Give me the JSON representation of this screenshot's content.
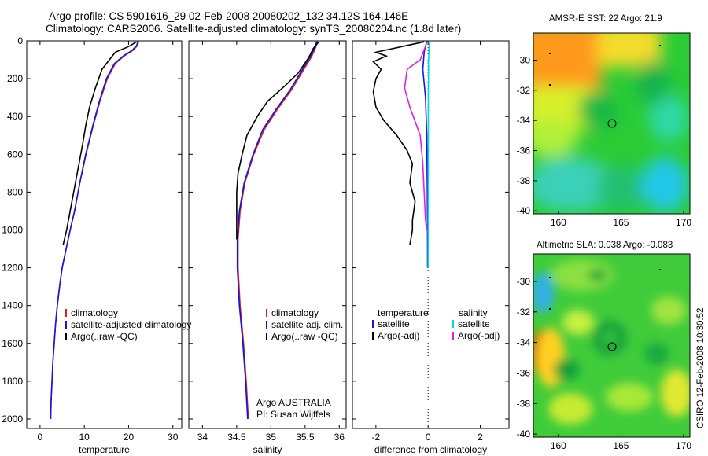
{
  "header": {
    "line1": "Argo profile: CS 5901616_29 02-Feb-2008 20080202_132 34.12S 164.146E",
    "line2": "Climatology: CARS2006. Satellite-adjusted climatology: synTS_20080204.nc (1.8d later)"
  },
  "credit": "CSIRO 12-Feb-2008 10:30:52",
  "chart_data": [
    {
      "type": "line",
      "xlabel": "temperature",
      "xlim": [
        -3,
        32
      ],
      "ylim": [
        0,
        2050
      ],
      "y_reversed": true,
      "xticks": [
        0,
        10,
        20,
        30
      ],
      "yticks": [
        0,
        200,
        400,
        600,
        800,
        1000,
        1200,
        1400,
        1600,
        1800,
        2000
      ],
      "legend": {
        "placement": "lower-center",
        "entries": [
          "climatology",
          "satellite-adjusted climatology",
          "Argo(..raw -QC)"
        ]
      },
      "series": [
        {
          "name": "climatology",
          "color": "#e0201a",
          "points": [
            [
              22.3,
              0
            ],
            [
              22,
              25
            ],
            [
              21,
              50
            ],
            [
              19,
              80
            ],
            [
              17,
              120
            ],
            [
              15.2,
              200
            ],
            [
              13.5,
              320
            ],
            [
              12,
              450
            ],
            [
              10.4,
              600
            ],
            [
              9,
              750
            ],
            [
              7.8,
              900
            ],
            [
              6.8,
              1000
            ],
            [
              5.9,
              1100
            ],
            [
              5,
              1200
            ],
            [
              4.4,
              1300
            ],
            [
              3.9,
              1400
            ],
            [
              3.5,
              1500
            ],
            [
              3.2,
              1600
            ],
            [
              2.9,
              1700
            ],
            [
              2.7,
              1800
            ],
            [
              2.5,
              1900
            ],
            [
              2.4,
              2000
            ]
          ]
        },
        {
          "name": "satellite-adjusted climatology",
          "color": "#1414e6",
          "points": [
            [
              22.2,
              0
            ],
            [
              21.8,
              25
            ],
            [
              20.8,
              50
            ],
            [
              18.8,
              80
            ],
            [
              16.8,
              120
            ],
            [
              15,
              200
            ],
            [
              13.4,
              320
            ],
            [
              11.9,
              450
            ],
            [
              10.3,
              600
            ],
            [
              9,
              750
            ],
            [
              7.8,
              900
            ],
            [
              6.8,
              1000
            ],
            [
              5.9,
              1100
            ],
            [
              5,
              1200
            ],
            [
              4.4,
              1300
            ],
            [
              3.9,
              1400
            ],
            [
              3.5,
              1500
            ],
            [
              3.2,
              1600
            ],
            [
              2.9,
              1700
            ],
            [
              2.7,
              1800
            ],
            [
              2.5,
              1900
            ],
            [
              2.4,
              2000
            ]
          ]
        },
        {
          "name": "Argo(..raw -QC)",
          "color": "#000000",
          "points": [
            [
              21.8,
              5
            ],
            [
              20,
              30
            ],
            [
              17,
              60
            ],
            [
              16,
              90
            ],
            [
              14,
              150
            ],
            [
              12.5,
              250
            ],
            [
              11.2,
              350
            ],
            [
              10.3,
              450
            ],
            [
              9.6,
              550
            ],
            [
              8.8,
              650
            ],
            [
              8,
              750
            ],
            [
              6.8,
              900
            ],
            [
              6,
              1000
            ],
            [
              5.2,
              1080
            ]
          ]
        }
      ]
    },
    {
      "type": "line",
      "xlabel": "salinity",
      "xlim": [
        33.8,
        36.1
      ],
      "ylim": [
        0,
        2050
      ],
      "y_reversed": true,
      "xticks": [
        34,
        34.5,
        35,
        35.5,
        36
      ],
      "legend": {
        "placement": "lower-center",
        "entries": [
          "climatology",
          "satellite adj. clim.",
          "Argo(..raw -QC)"
        ]
      },
      "annotation": {
        "line1": "Argo AUSTRALIA",
        "line2": "PI: Susan Wijffels"
      },
      "series": [
        {
          "name": "climatology",
          "color": "#e0201a",
          "points": [
            [
              35.68,
              0
            ],
            [
              35.66,
              30
            ],
            [
              35.6,
              80
            ],
            [
              35.45,
              170
            ],
            [
              35.3,
              260
            ],
            [
              35.1,
              360
            ],
            [
              34.9,
              470
            ],
            [
              34.75,
              600
            ],
            [
              34.62,
              750
            ],
            [
              34.55,
              900
            ],
            [
              34.52,
              1050
            ],
            [
              34.52,
              1200
            ],
            [
              34.55,
              1400
            ],
            [
              34.6,
              1600
            ],
            [
              34.64,
              1800
            ],
            [
              34.67,
              2000
            ]
          ]
        },
        {
          "name": "satellite adj. clim.",
          "color": "#1414e6",
          "points": [
            [
              35.67,
              0
            ],
            [
              35.65,
              30
            ],
            [
              35.58,
              80
            ],
            [
              35.43,
              170
            ],
            [
              35.28,
              260
            ],
            [
              35.08,
              360
            ],
            [
              34.88,
              470
            ],
            [
              34.74,
              600
            ],
            [
              34.61,
              750
            ],
            [
              34.54,
              900
            ],
            [
              34.51,
              1050
            ],
            [
              34.51,
              1200
            ],
            [
              34.54,
              1400
            ],
            [
              34.59,
              1600
            ],
            [
              34.63,
              1800
            ],
            [
              34.66,
              2000
            ]
          ]
        },
        {
          "name": "Argo(..raw -QC)",
          "color": "#000000",
          "points": [
            [
              35.7,
              5
            ],
            [
              35.62,
              40
            ],
            [
              35.55,
              90
            ],
            [
              35.4,
              170
            ],
            [
              35.2,
              240
            ],
            [
              34.95,
              320
            ],
            [
              34.8,
              400
            ],
            [
              34.65,
              500
            ],
            [
              34.58,
              600
            ],
            [
              34.52,
              700
            ],
            [
              34.5,
              800
            ],
            [
              34.5,
              900
            ],
            [
              34.5,
              1000
            ],
            [
              34.5,
              1050
            ]
          ]
        }
      ]
    },
    {
      "type": "line",
      "xlabel": "difference from climatology",
      "xlim": [
        -2.9,
        3.1
      ],
      "ylim": [
        0,
        2050
      ],
      "y_reversed": true,
      "xticks": [
        -2,
        0,
        2
      ],
      "legend": {
        "placement": "lower-center",
        "temperature_header": "temperature",
        "salinity_header": "salinity",
        "temperature_entries": [
          "satellite",
          "Argo(-adj)"
        ],
        "salinity_entries": [
          "satellite",
          "Argo(-adj)"
        ]
      },
      "series": [
        {
          "name": "satellite",
          "group": "temperature",
          "color": "#1414e6",
          "points": [
            [
              -0.05,
              0
            ],
            [
              -0.15,
              60
            ],
            [
              -0.2,
              150
            ],
            [
              -0.1,
              300
            ],
            [
              -0.05,
              500
            ],
            [
              -0.03,
              800
            ],
            [
              -0.02,
              1100
            ],
            [
              -0.02,
              1200
            ]
          ]
        },
        {
          "name": "satellite",
          "group": "salinity",
          "color": "#00dada",
          "points": [
            [
              0.05,
              0
            ],
            [
              0.02,
              100
            ],
            [
              0.01,
              300
            ],
            [
              0.0,
              1200
            ]
          ]
        },
        {
          "name": "Argo(-adj)",
          "group": "temperature",
          "color": "#000000",
          "points": [
            [
              -0.15,
              5
            ],
            [
              -1,
              30
            ],
            [
              -2,
              60
            ],
            [
              -1.6,
              80
            ],
            [
              -2.1,
              110
            ],
            [
              -1.8,
              150
            ],
            [
              -2,
              200
            ],
            [
              -2.1,
              270
            ],
            [
              -2,
              350
            ],
            [
              -1.7,
              420
            ],
            [
              -1.2,
              500
            ],
            [
              -0.8,
              580
            ],
            [
              -0.6,
              650
            ],
            [
              -0.7,
              750
            ],
            [
              -0.5,
              850
            ],
            [
              -0.6,
              950
            ],
            [
              -0.6,
              1000
            ],
            [
              -0.7,
              1080
            ]
          ]
        },
        {
          "name": "Argo(-adj)",
          "group": "salinity",
          "color": "#e81ee8",
          "points": [
            [
              -0.05,
              10
            ],
            [
              -0.3,
              100
            ],
            [
              -0.8,
              150
            ],
            [
              -0.9,
              250
            ],
            [
              -0.7,
              350
            ],
            [
              -0.3,
              500
            ],
            [
              -0.2,
              650
            ],
            [
              -0.15,
              800
            ],
            [
              -0.1,
              950
            ],
            [
              -0.05,
              1000
            ]
          ]
        }
      ]
    },
    {
      "type": "heatmap",
      "title": "AMSR-E SST: 22  Argo: 21.9",
      "xlim": [
        158,
        170.5
      ],
      "ylim": [
        -40.2,
        -28.2
      ],
      "xticks": [
        160,
        165,
        170
      ],
      "yticks": [
        -30,
        -32,
        -34,
        -36,
        -38,
        -40
      ],
      "float_position": [
        164.146,
        -34.12
      ]
    },
    {
      "type": "heatmap",
      "title": "Altimetric SLA: 0.038  Argo: -0.083",
      "xlim": [
        158,
        170.5
      ],
      "ylim": [
        -40.2,
        -28.2
      ],
      "xticks": [
        160,
        165,
        170
      ],
      "yticks": [
        -30,
        -32,
        -34,
        -36,
        -38,
        -40
      ],
      "float_position": [
        164.146,
        -34.12
      ]
    }
  ]
}
